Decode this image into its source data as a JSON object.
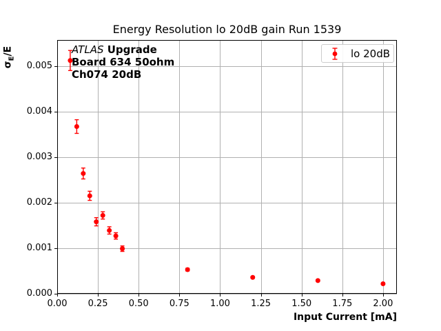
{
  "title": "Energy Resolution lo 20dB gain Run 1539",
  "axes": {
    "xlabel": "Input Current [mA]",
    "ylabel_sigma": "σ",
    "ylabel_sub": "E",
    "ylabel_rest": "/E",
    "x_tick_labels": [
      "0.00",
      "0.25",
      "0.50",
      "0.75",
      "1.00",
      "1.25",
      "1.50",
      "1.75",
      "2.00"
    ],
    "y_tick_labels": [
      "0.000",
      "0.001",
      "0.002",
      "0.003",
      "0.004",
      "0.005"
    ]
  },
  "annotation": {
    "line1_italic": "ATLAS",
    "line1_bold": "Upgrade",
    "line2": "Board 634 50ohm",
    "line3": "Ch074 20dB"
  },
  "legend": {
    "label": "lo 20dB"
  },
  "colors": {
    "series": "#ff0000",
    "grid": "#b0b0b0",
    "spine": "#000000",
    "legend_border": "#cccccc",
    "background": "#ffffff"
  },
  "chart_data": {
    "type": "scatter",
    "title": "Energy Resolution lo 20dB gain Run 1539",
    "xlabel": "Input Current [mA]",
    "ylabel": "σ_E/E",
    "xlim": [
      0,
      2.085
    ],
    "ylim": [
      0,
      0.00557
    ],
    "x_ticks": [
      0,
      0.25,
      0.5,
      0.75,
      1.0,
      1.25,
      1.5,
      1.75,
      2.0
    ],
    "y_ticks": [
      0,
      0.001,
      0.002,
      0.003,
      0.004,
      0.005
    ],
    "grid": true,
    "legend_position": "upper right",
    "series": [
      {
        "name": "lo 20dB",
        "color": "#ff0000",
        "marker": "circle",
        "x": [
          0.08,
          0.12,
          0.16,
          0.2,
          0.24,
          0.28,
          0.32,
          0.36,
          0.4,
          0.8,
          1.2,
          1.6,
          2.0
        ],
        "y": [
          0.00512,
          0.00367,
          0.00264,
          0.00215,
          0.00158,
          0.00172,
          0.00139,
          0.00127,
          0.00099,
          0.00053,
          0.00036,
          0.00029,
          0.00022
        ],
        "yerr": [
          0.00022,
          0.00015,
          0.00012,
          0.0001,
          9e-05,
          8e-05,
          8e-05,
          7e-05,
          6e-05,
          3e-05,
          2e-05,
          2e-05,
          2e-05
        ]
      }
    ]
  }
}
